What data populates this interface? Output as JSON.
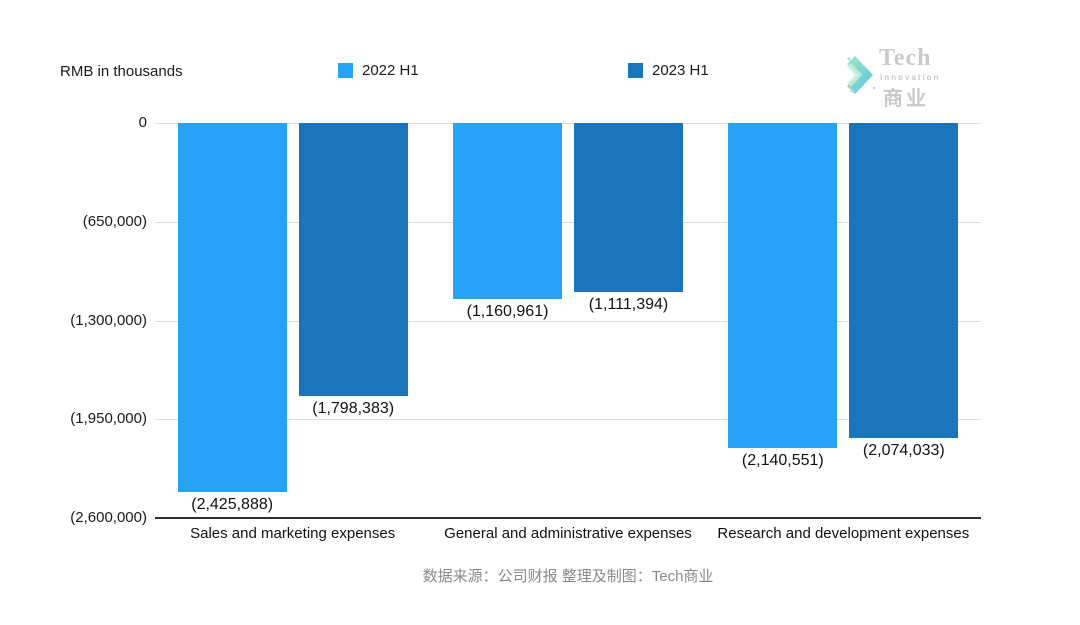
{
  "header": {
    "unit_label": "RMB in thousands",
    "logo": {
      "line1": "Tech",
      "line2": "innovation",
      "line3": "商业",
      "arrow_icon": "chevron-right-icon",
      "arrow_color_start": "#9fe0c0",
      "arrow_color_end": "#3fbedd",
      "text_color": "#c9c9cd"
    }
  },
  "chart_data": {
    "type": "bar",
    "title": "",
    "unit": "RMB in thousands",
    "orientation": "vertical-negative",
    "categories": [
      "Sales and marketing expenses",
      "General and administrative expenses",
      "Research and development expenses"
    ],
    "series": [
      {
        "name": "2022 H1",
        "color": "#27a2f8",
        "values": [
          -2425888,
          -1160961,
          -2140551
        ],
        "labels": [
          "(2,425,888)",
          "(1,160,961)",
          "(2,140,551)"
        ]
      },
      {
        "name": "2023 H1",
        "color": "#1a76bc",
        "values": [
          -1798383,
          -1111394,
          -2074033
        ],
        "labels": [
          "(1,798,383)",
          "(1,111,394)",
          "(2,074,033)"
        ]
      }
    ],
    "ylim": [
      -2600000,
      0
    ],
    "yticks": [
      {
        "value": 0,
        "label": "0"
      },
      {
        "value": -650000,
        "label": "(650,000)"
      },
      {
        "value": -1300000,
        "label": "(1,300,000)"
      },
      {
        "value": -1950000,
        "label": "(1,950,000)"
      },
      {
        "value": -2600000,
        "label": "(2,600,000)"
      }
    ],
    "grid": true,
    "gridline_color": "#dcdcdc",
    "axis_line_color": "#2f2f2f",
    "legend_position": "top"
  },
  "footer": {
    "source_text": "数据来源：公司财报 整理及制图：Tech商业"
  }
}
